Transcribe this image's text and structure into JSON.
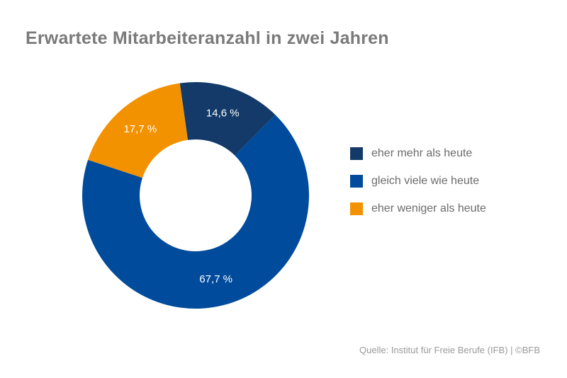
{
  "chart_data": {
    "type": "pie",
    "title": "Erwartete Mitarbeiteranzahl in zwei Jahren",
    "donut": true,
    "start_angle_deg": -8,
    "slices": [
      {
        "name": "eher mehr als heute",
        "value": 14.6,
        "label": "14,6 %",
        "color": "#133a68"
      },
      {
        "name": "gleich viele wie heute",
        "value": 67.7,
        "label": "67,7 %",
        "color": "#004b9b"
      },
      {
        "name": "eher weniger als heute",
        "value": 17.7,
        "label": "17,7 %",
        "color": "#f39200"
      }
    ],
    "legend_position": "right"
  },
  "source": "Quelle: Institut für Freie Berufe (IFB) | ©BFB"
}
